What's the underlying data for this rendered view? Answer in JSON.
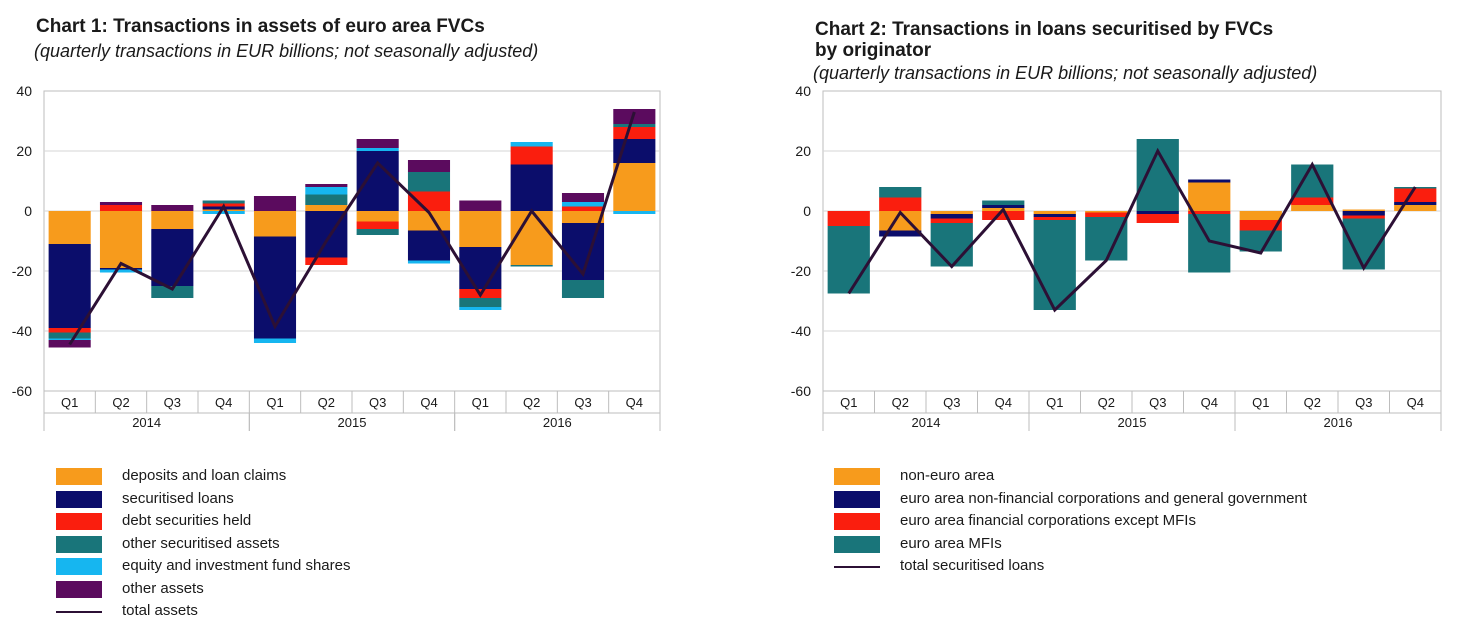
{
  "chart_data": [
    {
      "type": "bar",
      "stacked": true,
      "title": "Chart 1: Transactions in assets of euro area FVCs",
      "subtitle": "(quarterly transactions in EUR billions; not seasonally adjusted)",
      "categories": [
        "Q1",
        "Q2",
        "Q3",
        "Q4",
        "Q1",
        "Q2",
        "Q3",
        "Q4",
        "Q1",
        "Q2",
        "Q3",
        "Q4"
      ],
      "years": [
        {
          "label": "2014",
          "from": 0,
          "to": 3
        },
        {
          "label": "2015",
          "from": 4,
          "to": 7
        },
        {
          "label": "2016",
          "from": 8,
          "to": 11
        }
      ],
      "ylim": [
        -60,
        40
      ],
      "yticks": [
        -60,
        -40,
        -20,
        0,
        20,
        40
      ],
      "series": [
        {
          "name": "deposits and loan claims",
          "color": "#f79b1c",
          "values": [
            -11,
            -19,
            -6,
            0.5,
            -8.5,
            2,
            -3.5,
            -6.5,
            -12,
            -18,
            -4,
            16
          ]
        },
        {
          "name": "securitised loans",
          "color": "#0b0d6b",
          "values": [
            -28,
            -0.5,
            -19,
            1,
            -34,
            -15.5,
            20,
            -10,
            -14,
            15.5,
            -19,
            8
          ]
        },
        {
          "name": "debt securities held",
          "color": "#fa1e0e",
          "values": [
            -1.5,
            2,
            0,
            1,
            0,
            -2.5,
            -2.5,
            6.5,
            -3,
            6,
            1.5,
            4
          ]
        },
        {
          "name": "other securitised assets",
          "color": "#19757a",
          "values": [
            -2,
            0,
            -4,
            1,
            0,
            3.5,
            -2,
            6.5,
            -3,
            -0.5,
            -6,
            1
          ]
        },
        {
          "name": "equity and investment fund shares",
          "color": "#16b6f0",
          "values": [
            -0.5,
            -1,
            0,
            -1,
            -1.5,
            2.5,
            1,
            -1,
            -1,
            1.5,
            1.5,
            -1
          ]
        },
        {
          "name": "other assets",
          "color": "#5b0b5e",
          "values": [
            -2.5,
            1,
            2,
            0,
            5,
            1,
            3,
            4,
            3.5,
            0,
            3,
            5
          ]
        }
      ],
      "line": {
        "name": "total assets",
        "color": "#2c1035",
        "values": [
          -44.5,
          -17.5,
          -26,
          1.5,
          -38.5,
          -10,
          16,
          -0.5,
          -28,
          0,
          -21,
          33
        ]
      }
    },
    {
      "type": "bar",
      "stacked": true,
      "title": "Chart 2: Transactions in loans securitised by FVCs by originator",
      "title_lines": [
        "Chart 2: Transactions in loans securitised by FVCs",
        "by originator"
      ],
      "subtitle": "(quarterly transactions in EUR billions; not seasonally adjusted)",
      "categories": [
        "Q1",
        "Q2",
        "Q3",
        "Q4",
        "Q1",
        "Q2",
        "Q3",
        "Q4",
        "Q1",
        "Q2",
        "Q3",
        "Q4"
      ],
      "years": [
        {
          "label": "2014",
          "from": 0,
          "to": 3
        },
        {
          "label": "2015",
          "from": 4,
          "to": 7
        },
        {
          "label": "2016",
          "from": 8,
          "to": 11
        }
      ],
      "ylim": [
        -60,
        40
      ],
      "yticks": [
        -60,
        -40,
        -20,
        0,
        20,
        40
      ],
      "series": [
        {
          "name": "non-euro area",
          "color": "#f79b1c",
          "values": [
            0,
            -6.5,
            -1,
            1,
            -1,
            -0.5,
            0,
            9.5,
            -3,
            2,
            0.5,
            2
          ]
        },
        {
          "name": "euro area non-financial corporations and general government",
          "color": "#0b0d6b",
          "values": [
            0,
            -2,
            -1.5,
            1,
            -1,
            0,
            -1,
            1,
            0,
            0,
            -1.5,
            1
          ]
        },
        {
          "name": "euro area financial corporations except MFIs",
          "color": "#fa1e0e",
          "values": [
            -5,
            4.5,
            -1.5,
            -3,
            -1,
            -1.5,
            -3,
            -1,
            -3.5,
            2.5,
            -1,
            4.5
          ]
        },
        {
          "name": "euro area MFIs",
          "color": "#19757a",
          "values": [
            -22.5,
            3.5,
            -14.5,
            1.5,
            -30,
            -14.5,
            24,
            -19.5,
            -7,
            11,
            -17,
            0.5
          ]
        }
      ],
      "line": {
        "name": "total securitised loans",
        "color": "#2c1035",
        "values": [
          -27.5,
          -0.5,
          -18.5,
          0.5,
          -33,
          -16.5,
          20,
          -10,
          -14,
          15.5,
          -19,
          8
        ]
      }
    }
  ]
}
